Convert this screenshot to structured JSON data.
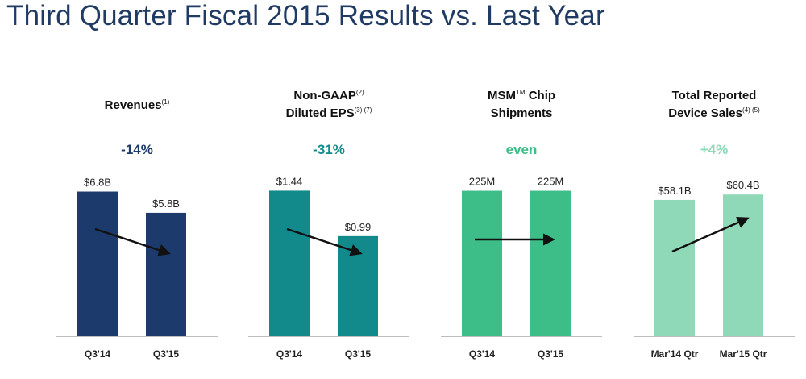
{
  "page": {
    "title": "Third Quarter Fiscal 2015 Results vs. Last Year"
  },
  "chart_data": [
    {
      "type": "bar",
      "title": "Revenues",
      "title_lines": [
        {
          "parts": [
            {
              "text": "Revenues"
            },
            {
              "text": "(1)",
              "sup": true
            }
          ]
        }
      ],
      "change": "-14%",
      "categories": [
        "Q3'14",
        "Q3'15"
      ],
      "values": [
        6.8,
        5.8
      ],
      "value_labels": [
        "$6.8B",
        "$5.8B"
      ],
      "units": "$B",
      "ylim": [
        0,
        8.6
      ],
      "color": "#1c3a6b",
      "change_color": "#1c3a6b",
      "trend": "down"
    },
    {
      "type": "bar",
      "title": "Non-GAAP Diluted EPS",
      "title_lines": [
        {
          "parts": [
            {
              "text": "Non-GAAP"
            },
            {
              "text": "(2)",
              "sup": true
            }
          ]
        },
        {
          "parts": [
            {
              "text": "Diluted EPS"
            },
            {
              "text": "(3) (7)",
              "sup": true
            }
          ]
        }
      ],
      "change": "-31%",
      "categories": [
        "Q3'14",
        "Q3'15"
      ],
      "values": [
        1.44,
        0.99
      ],
      "value_labels": [
        "$1.44",
        "$0.99"
      ],
      "units": "$",
      "ylim": [
        0,
        1.81
      ],
      "color": "#128a8c",
      "change_color": "#128a8c",
      "trend": "down"
    },
    {
      "type": "bar",
      "title": "MSM Chip Shipments",
      "title_lines": [
        {
          "parts": [
            {
              "text": "MSM"
            },
            {
              "text": "TM",
              "sup": true
            },
            {
              "text": " Chip"
            }
          ]
        },
        {
          "parts": [
            {
              "text": "Shipments"
            }
          ]
        }
      ],
      "change": "even",
      "categories": [
        "Q3'14",
        "Q3'15"
      ],
      "values": [
        225,
        225
      ],
      "value_labels": [
        "225M",
        "225M"
      ],
      "units": "M",
      "ylim": [
        0,
        283
      ],
      "color": "#3dbd87",
      "change_color": "#3dbd87",
      "trend": "flat"
    },
    {
      "type": "bar",
      "title": "Total Reported Device Sales",
      "title_lines": [
        {
          "parts": [
            {
              "text": "Total Reported"
            }
          ]
        },
        {
          "parts": [
            {
              "text": "Device Sales"
            },
            {
              "text": "(4) (5)",
              "sup": true
            }
          ]
        }
      ],
      "change": "+4%",
      "categories": [
        "Mar'14 Qtr",
        "Mar'15 Qtr"
      ],
      "values": [
        58.1,
        60.4
      ],
      "value_labels": [
        "$58.1B",
        "$60.4B"
      ],
      "units": "$B",
      "ylim": [
        0,
        78
      ],
      "color": "#8fd8b8",
      "change_color": "#8fd8b8",
      "trend": "up"
    }
  ]
}
